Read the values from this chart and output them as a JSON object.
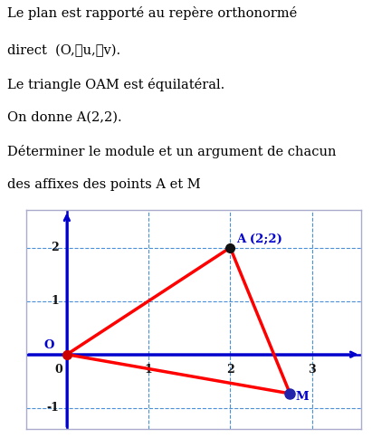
{
  "title_lines": [
    "Le plan est rapporté au repère orthonormé",
    "direct  (O,⃗u,⃗v).",
    "Le triangle OAM est équilatéral.",
    "On donne A(2,2).",
    "Déterminer le module et un argument de chacun",
    "des affixes des points A et M"
  ],
  "O": [
    0,
    0
  ],
  "A": [
    2,
    2
  ],
  "M": [
    2.7320508075688776,
    -0.7320508075688772
  ],
  "xlim": [
    -0.5,
    3.6
  ],
  "ylim": [
    -1.4,
    2.7
  ],
  "xticks": [
    0,
    1,
    2,
    3
  ],
  "yticks": [
    -1,
    0,
    1,
    2
  ],
  "grid_color": "#4a90d9",
  "axis_color": "#0000cc",
  "triangle_color": "red",
  "point_color_A": "#111111",
  "point_color_M": "#2222aa",
  "point_color_O": "#cc0000",
  "label_color": "#0000cc",
  "text_color": "#000000",
  "background_color": "#ffffff",
  "plot_bg": "#ffffff",
  "border_color": "#aaaacc",
  "fig_width": 4.11,
  "fig_height": 4.84
}
